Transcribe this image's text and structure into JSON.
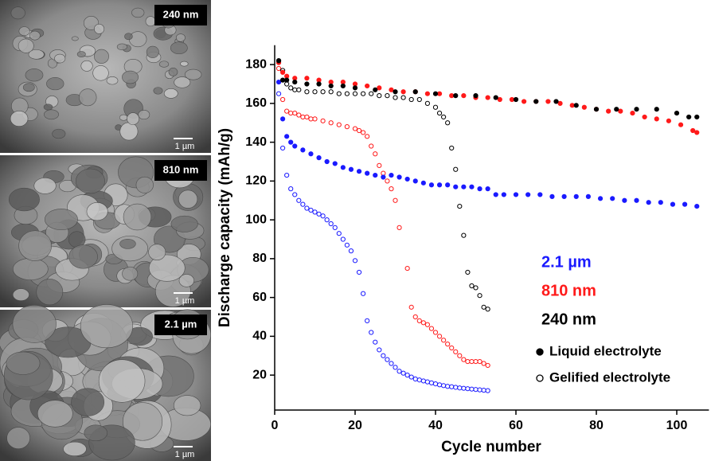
{
  "images": [
    {
      "label": "240 nm",
      "scale": "1 µm"
    },
    {
      "label": "810 nm",
      "scale": "1 µm"
    },
    {
      "label": "2.1 µm",
      "scale": "1 µm"
    }
  ],
  "chart_data": {
    "type": "scatter",
    "x_label": "Cycle number",
    "y_label": "Discharge capacity (mAh/g)",
    "xlim": [
      0,
      108
    ],
    "ylim": [
      2,
      190
    ],
    "xticks": [
      0,
      20,
      40,
      60,
      80,
      100
    ],
    "yticks": [
      20,
      40,
      60,
      80,
      100,
      120,
      140,
      160,
      180
    ],
    "legend_sizes": [
      {
        "label": "2.1 µm",
        "color": "#1a1aff"
      },
      {
        "label": "810 nm",
        "color": "#ff1a1a"
      },
      {
        "label": "240 nm",
        "color": "#000000"
      }
    ],
    "legend_markers": [
      {
        "label": "Liquid electrolyte",
        "filled": true
      },
      {
        "label": "Gelified electrolyte",
        "filled": false
      }
    ],
    "series": [
      {
        "color": "#1a1aff",
        "filled": false,
        "x": [
          1,
          2,
          3,
          4,
          5,
          6,
          7,
          8,
          9,
          10,
          11,
          12,
          13,
          14,
          15,
          16,
          17,
          18,
          19,
          20,
          21,
          22,
          23,
          24,
          25,
          26,
          27,
          28,
          29,
          30,
          31,
          32,
          33,
          34,
          35,
          36,
          37,
          38,
          39,
          40,
          41,
          42,
          43,
          44,
          45,
          46,
          47,
          48,
          49,
          50,
          51,
          52,
          53
        ],
        "values": [
          165,
          137,
          123,
          116,
          113,
          110,
          108,
          106,
          105,
          104,
          103,
          102,
          100,
          98,
          96,
          93,
          90,
          87,
          84,
          79,
          73,
          62,
          48,
          42,
          37,
          33,
          30,
          28,
          26,
          24,
          22,
          21,
          20,
          19,
          18,
          17.5,
          17,
          16.5,
          16,
          15.5,
          15,
          14.6,
          14.2,
          14,
          13.7,
          13.4,
          13.2,
          13,
          12.8,
          12.6,
          12.4,
          12.2,
          12
        ]
      },
      {
        "color": "#ff1a1a",
        "filled": false,
        "x": [
          1,
          2,
          3,
          4,
          5,
          6,
          7,
          8,
          9,
          10,
          12,
          14,
          16,
          18,
          20,
          21,
          22,
          23,
          24,
          25,
          26,
          27,
          28,
          29,
          30,
          31,
          33,
          34,
          35,
          36,
          37,
          38,
          39,
          40,
          41,
          42,
          43,
          44,
          45,
          46,
          47,
          48,
          49,
          50,
          51,
          52,
          53
        ],
        "values": [
          178,
          162,
          156,
          155,
          155,
          154,
          153,
          153,
          152,
          152,
          151,
          150,
          149,
          148,
          147,
          146,
          145,
          143,
          138,
          134,
          128,
          124,
          120,
          116,
          110,
          96,
          75,
          55,
          50,
          48,
          47,
          46,
          44,
          42,
          40,
          38,
          36,
          34,
          32,
          30,
          28,
          27,
          27,
          27,
          27,
          26,
          25
        ]
      },
      {
        "color": "#000000",
        "filled": false,
        "x": [
          1,
          2,
          3,
          4,
          5,
          6,
          8,
          10,
          12,
          14,
          16,
          18,
          20,
          22,
          24,
          26,
          28,
          30,
          32,
          34,
          36,
          38,
          40,
          41,
          42,
          43,
          44,
          45,
          46,
          47,
          48,
          49,
          50,
          51,
          52,
          53
        ],
        "values": [
          182,
          177,
          170,
          168,
          167,
          167,
          166,
          166,
          166,
          166,
          165,
          165,
          165,
          165,
          165,
          164,
          164,
          163,
          163,
          162,
          162,
          160,
          158,
          155,
          153,
          150,
          137,
          126,
          107,
          92,
          73,
          66,
          65,
          61,
          55,
          54
        ]
      },
      {
        "color": "#1a1aff",
        "filled": true,
        "x": [
          1,
          2,
          3,
          4,
          5,
          7,
          9,
          11,
          13,
          15,
          17,
          19,
          21,
          23,
          25,
          27,
          29,
          31,
          33,
          35,
          37,
          39,
          41,
          43,
          45,
          47,
          49,
          51,
          53,
          55,
          57,
          60,
          63,
          66,
          69,
          72,
          75,
          78,
          81,
          84,
          87,
          90,
          93,
          96,
          99,
          102,
          105
        ],
        "values": [
          171,
          152,
          143,
          140,
          138,
          136,
          134,
          132,
          130,
          129,
          127,
          126,
          125,
          124,
          123,
          122,
          123,
          122,
          121,
          120,
          119,
          118,
          118,
          118,
          117,
          117,
          117,
          116,
          116,
          113,
          113,
          113,
          113,
          113,
          112,
          112,
          112,
          112,
          111,
          111,
          110,
          110,
          109,
          109,
          108,
          108,
          107
        ]
      },
      {
        "color": "#ff1a1a",
        "filled": true,
        "x": [
          1,
          2,
          3,
          5,
          8,
          11,
          14,
          17,
          20,
          23,
          26,
          29,
          32,
          35,
          38,
          41,
          44,
          47,
          50,
          53,
          56,
          59,
          62,
          65,
          68,
          71,
          74,
          77,
          80,
          83,
          86,
          89,
          92,
          95,
          98,
          101,
          104,
          105
        ],
        "values": [
          181,
          176,
          174,
          173,
          173,
          172,
          171,
          171,
          170,
          169,
          168,
          167,
          166,
          166,
          165,
          165,
          164,
          164,
          163,
          163,
          162,
          162,
          161,
          161,
          161,
          160,
          159,
          158,
          157,
          156,
          156,
          155,
          153,
          152,
          151,
          149,
          146,
          145
        ]
      },
      {
        "color": "#000000",
        "filled": true,
        "x": [
          1,
          2,
          3,
          5,
          8,
          11,
          14,
          17,
          20,
          25,
          30,
          35,
          40,
          45,
          50,
          55,
          60,
          65,
          70,
          75,
          80,
          85,
          90,
          95,
          100,
          103,
          105
        ],
        "values": [
          182,
          172,
          172,
          171,
          170,
          170,
          169,
          169,
          168,
          167,
          166,
          166,
          165,
          164,
          164,
          163,
          162,
          161,
          161,
          159,
          157,
          157,
          157,
          157,
          155,
          153,
          153
        ]
      }
    ]
  }
}
